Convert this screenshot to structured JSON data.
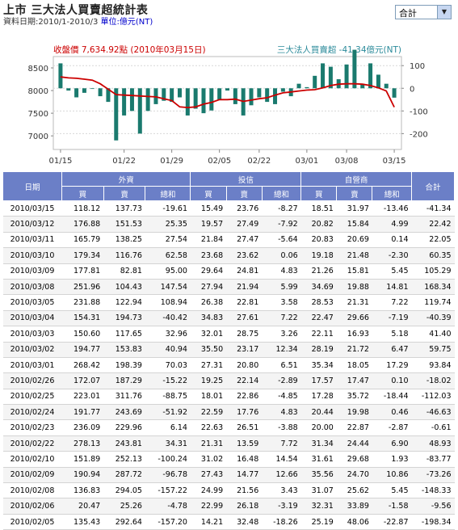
{
  "header": {
    "title": "上市 三大法人買賣超統計表",
    "date_label": "資料日期:2010/1-2010/3",
    "unit_label": "單位:億元(NT)"
  },
  "selector": {
    "value": "合計"
  },
  "colors": {
    "bar": "#1a7a6e",
    "line": "#cc0000",
    "header_bg": "#6b7fc7",
    "legend_right": "#2a8a9a"
  },
  "chart_data": {
    "type": "bar+line",
    "legend_left": "收盤價 7,634.92點 (2010年03月15日)",
    "legend_right": "三大法人買賣超 -41.34億元(NT)",
    "y_left": {
      "ticks": [
        "8500",
        "8000",
        "7500",
        "7000"
      ],
      "range": [
        6700,
        8750
      ]
    },
    "y_right": {
      "ticks": [
        "100",
        "0",
        "-100",
        "-200"
      ],
      "range": [
        -270,
        140
      ]
    },
    "x_ticks": [
      "01/15",
      "01/22",
      "01/29",
      "02/05",
      "02/22",
      "03/01",
      "03/08",
      "03/15"
    ],
    "series": [
      {
        "name": "收盤價",
        "type": "line",
        "values": [
          8300,
          8280,
          8270,
          8250,
          8230,
          8150,
          8030,
          7910,
          7900,
          7890,
          7880,
          7870,
          7860,
          7820,
          7780,
          7640,
          7625,
          7640,
          7700,
          7740,
          7800,
          7800,
          7810,
          7760,
          7790,
          7820,
          7840,
          7900,
          7950,
          7970,
          7990,
          8010,
          8020,
          8060,
          8110,
          8140,
          8150,
          8150,
          8140,
          8110,
          8060,
          7990,
          7634.92
        ]
      },
      {
        "name": "三大法人買賣超",
        "type": "bar",
        "values": [
          110,
          -10,
          -40,
          -20,
          0,
          -35,
          -60,
          -230,
          -120,
          -100,
          -200,
          -100,
          -70,
          -55,
          -60,
          -40,
          -120,
          -90,
          -110,
          -98,
          -50,
          -10,
          -70,
          -120,
          -75,
          -40,
          -60,
          -70,
          -15,
          -35,
          20,
          5,
          55,
          110,
          95,
          40,
          105,
          170,
          20,
          110,
          60,
          20,
          -41.34
        ]
      }
    ]
  },
  "table": {
    "headers": {
      "date": "日期",
      "foreign": "外資",
      "trust": "投信",
      "dealer": "自營商",
      "total": "合計",
      "buy": "買",
      "sell": "賣",
      "net": "總和"
    },
    "rows": [
      [
        "2010/03/15",
        "118.12",
        "137.73",
        "-19.61",
        "15.49",
        "23.76",
        "-8.27",
        "18.51",
        "31.97",
        "-13.46",
        "-41.34"
      ],
      [
        "2010/03/12",
        "176.88",
        "151.53",
        "25.35",
        "19.57",
        "27.49",
        "-7.92",
        "20.82",
        "15.84",
        "4.99",
        "22.42"
      ],
      [
        "2010/03/11",
        "165.79",
        "138.25",
        "27.54",
        "21.84",
        "27.47",
        "-5.64",
        "20.83",
        "20.69",
        "0.14",
        "22.05"
      ],
      [
        "2010/03/10",
        "179.34",
        "116.76",
        "62.58",
        "23.68",
        "23.62",
        "0.06",
        "19.18",
        "21.48",
        "-2.30",
        "60.35"
      ],
      [
        "2010/03/09",
        "177.81",
        "82.81",
        "95.00",
        "29.64",
        "24.81",
        "4.83",
        "21.26",
        "15.81",
        "5.45",
        "105.29"
      ],
      [
        "2010/03/08",
        "251.96",
        "104.43",
        "147.54",
        "27.94",
        "21.94",
        "5.99",
        "34.69",
        "19.88",
        "14.81",
        "168.34"
      ],
      [
        "2010/03/05",
        "231.88",
        "122.94",
        "108.94",
        "26.38",
        "22.81",
        "3.58",
        "28.53",
        "21.31",
        "7.22",
        "119.74"
      ],
      [
        "2010/03/04",
        "154.31",
        "194.73",
        "-40.42",
        "34.83",
        "27.61",
        "7.22",
        "22.47",
        "29.66",
        "-7.19",
        "-40.39"
      ],
      [
        "2010/03/03",
        "150.60",
        "117.65",
        "32.96",
        "32.01",
        "28.75",
        "3.26",
        "22.11",
        "16.93",
        "5.18",
        "41.40"
      ],
      [
        "2010/03/02",
        "194.77",
        "153.83",
        "40.94",
        "35.50",
        "23.17",
        "12.34",
        "28.19",
        "21.72",
        "6.47",
        "59.75"
      ],
      [
        "2010/03/01",
        "268.42",
        "198.39",
        "70.03",
        "27.31",
        "20.80",
        "6.51",
        "35.34",
        "18.05",
        "17.29",
        "93.84"
      ],
      [
        "2010/02/26",
        "172.07",
        "187.29",
        "-15.22",
        "19.25",
        "22.14",
        "-2.89",
        "17.57",
        "17.47",
        "0.10",
        "-18.02"
      ],
      [
        "2010/02/25",
        "223.01",
        "311.76",
        "-88.75",
        "18.01",
        "22.86",
        "-4.85",
        "17.28",
        "35.72",
        "-18.44",
        "-112.03"
      ],
      [
        "2010/02/24",
        "191.77",
        "243.69",
        "-51.92",
        "22.59",
        "17.76",
        "4.83",
        "20.44",
        "19.98",
        "0.46",
        "-46.63"
      ],
      [
        "2010/02/23",
        "236.09",
        "229.96",
        "6.14",
        "22.63",
        "26.51",
        "-3.88",
        "20.00",
        "22.87",
        "-2.87",
        "-0.61"
      ],
      [
        "2010/02/22",
        "278.13",
        "243.81",
        "34.31",
        "21.31",
        "13.59",
        "7.72",
        "31.34",
        "24.44",
        "6.90",
        "48.93"
      ],
      [
        "2010/02/10",
        "151.89",
        "252.13",
        "-100.24",
        "31.02",
        "16.48",
        "14.54",
        "31.61",
        "29.68",
        "1.93",
        "-83.77"
      ],
      [
        "2010/02/09",
        "190.94",
        "287.72",
        "-96.78",
        "27.43",
        "14.77",
        "12.66",
        "35.56",
        "24.70",
        "10.86",
        "-73.26"
      ],
      [
        "2010/02/08",
        "136.83",
        "294.05",
        "-157.22",
        "24.99",
        "21.56",
        "3.43",
        "31.07",
        "25.62",
        "5.45",
        "-148.33"
      ],
      [
        "2010/02/06",
        "20.47",
        "25.26",
        "-4.78",
        "22.99",
        "26.18",
        "-3.19",
        "32.31",
        "33.89",
        "-1.58",
        "-9.56"
      ],
      [
        "2010/02/05",
        "135.43",
        "292.64",
        "-157.20",
        "14.21",
        "32.48",
        "-18.26",
        "25.19",
        "48.06",
        "-22.87",
        "-198.34"
      ]
    ]
  }
}
